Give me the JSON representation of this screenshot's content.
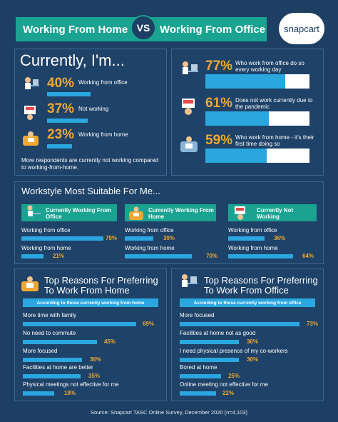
{
  "header": {
    "left": "Working From Home",
    "vs": "VS",
    "right": "Working From Office",
    "logo": "snapcart"
  },
  "currently": {
    "title": "Currently, I'm...",
    "items": [
      {
        "pct": "40%",
        "label": "Working from office",
        "value": 40
      },
      {
        "pct": "37%",
        "label": "Not working",
        "value": 37
      },
      {
        "pct": "23%",
        "label": "Working from home",
        "value": 23
      }
    ],
    "note": "More respondents are currently not working compared to working-from-home."
  },
  "stats": [
    {
      "pct": "77%",
      "label": "Who work from office do so every working day",
      "value": 77
    },
    {
      "pct": "61%",
      "label": "Does not work currently due to the pandemic",
      "value": 61
    },
    {
      "pct": "59%",
      "label": "Who work from home - it's their first time doing so",
      "value": 59
    }
  ],
  "workstyle": {
    "title": "Workstyle Most Suitable For Me...",
    "groups": [
      {
        "head": "Currently Working From Office",
        "rows": [
          {
            "label": "Working from office",
            "pct": "79%",
            "value": 79
          },
          {
            "label": "Working from home",
            "pct": "21%",
            "value": 21
          }
        ]
      },
      {
        "head": "Currently Working From Home",
        "rows": [
          {
            "label": "Working from office",
            "pct": "30%",
            "value": 30
          },
          {
            "label": "Working from home",
            "pct": "70%",
            "value": 70
          }
        ]
      },
      {
        "head": "Currently Not Working",
        "rows": [
          {
            "label": "Working from office",
            "pct": "36%",
            "value": 36
          },
          {
            "label": "Working from home",
            "pct": "64%",
            "value": 64
          }
        ]
      }
    ]
  },
  "reasons_home": {
    "title": "Top Reasons For Preferring To Work From Home",
    "sub": "According to those currently working from home",
    "rows": [
      {
        "label": "More time with family",
        "pct": "69%",
        "value": 69
      },
      {
        "label": "No need to commute",
        "pct": "45%",
        "value": 45
      },
      {
        "label": "More focused",
        "pct": "36%",
        "value": 36
      },
      {
        "label": "Facilities at home are better",
        "pct": "35%",
        "value": 35
      },
      {
        "label": "Physical meetings not effective for me",
        "pct": "19%",
        "value": 19
      }
    ]
  },
  "reasons_office": {
    "title": "Top Reasons For Preferring To Work From Office",
    "sub": "According to those currently working from office",
    "rows": [
      {
        "label": "More focused",
        "pct": "73%",
        "value": 73
      },
      {
        "label": "Facilities at home not as good",
        "pct": "36%",
        "value": 36
      },
      {
        "label": "I need physical presence of my co-workers",
        "pct": "36%",
        "value": 36
      },
      {
        "label": "Bored at home",
        "pct": "25%",
        "value": 25
      },
      {
        "label": "Online meeting not effective for me",
        "pct": "22%",
        "value": 22
      }
    ]
  },
  "source": "Source: Snapcart TASC Online Survey, December 2020 (n=4,103)",
  "colors": {
    "teal": "#1aa391",
    "bar": "#2ba7e0",
    "accent": "#f0a832",
    "bg": "#1d3f63"
  },
  "chart_data": [
    {
      "type": "bar",
      "categories": [
        "Working from office",
        "Not working",
        "Working from home"
      ],
      "values": [
        40,
        37,
        23
      ]
    },
    {
      "type": "bar",
      "categories": [
        "Who work from office do so every working day",
        "Does not work currently due to the pandemic",
        "Who work from home - it's their first time doing so"
      ],
      "values": [
        77,
        61,
        59
      ]
    },
    {
      "type": "bar",
      "categories": [
        "Working from office",
        "Working from home"
      ],
      "series": [
        {
          "name": "Currently Working From Office",
          "values": [
            79,
            21
          ]
        },
        {
          "name": "Currently Working From Home",
          "values": [
            30,
            70
          ]
        },
        {
          "name": "Currently Not Working",
          "values": [
            36,
            64
          ]
        }
      ]
    },
    {
      "type": "bar",
      "categories": [
        "More time with family",
        "No need to commute",
        "More focused",
        "Facilities at home are better",
        "Physical meetings not effective for me"
      ],
      "values": [
        69,
        45,
        36,
        35,
        19
      ]
    },
    {
      "type": "bar",
      "categories": [
        "More focused",
        "Facilities at home not as good",
        "I need physical presence of my co-workers",
        "Bored at home",
        "Online meeting not effective for me"
      ],
      "values": [
        73,
        36,
        36,
        25,
        22
      ]
    }
  ]
}
